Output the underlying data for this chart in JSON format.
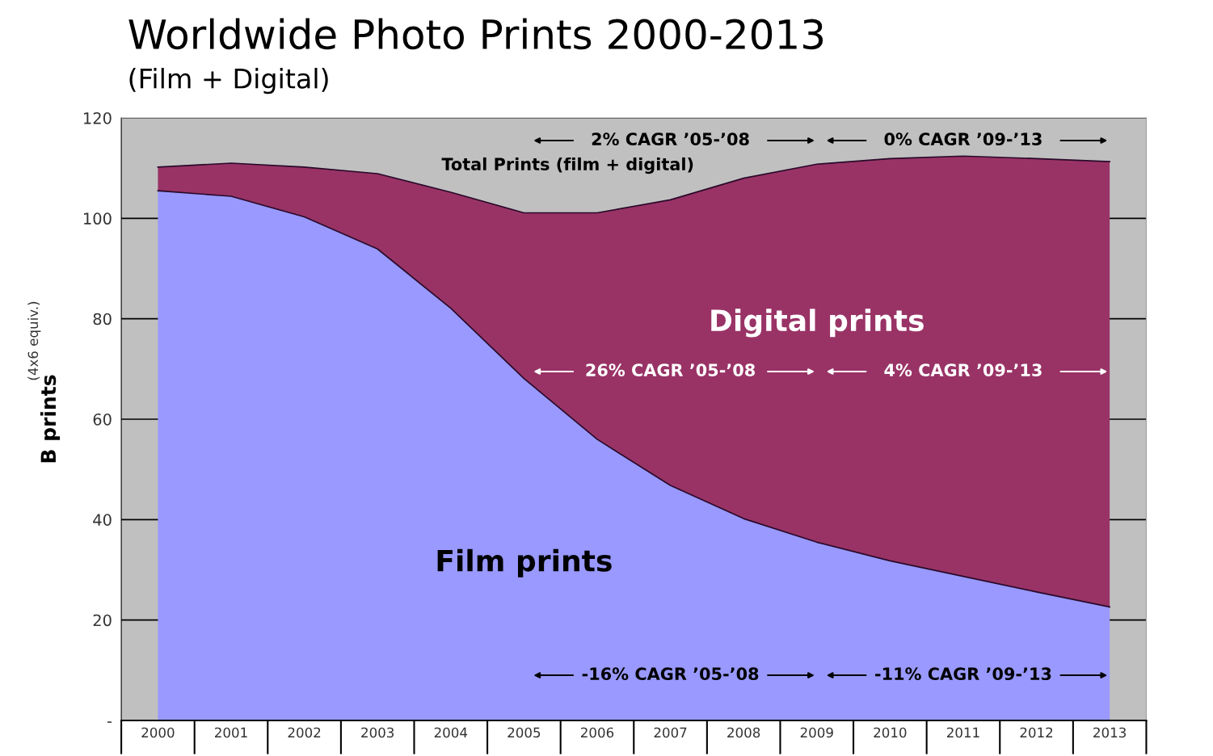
{
  "chart_data": {
    "type": "area",
    "stacked": true,
    "title": "Worldwide Photo Prints 2000-2013",
    "subtitle": "(Film + Digital)",
    "ylabel": "B prints",
    "categories": [
      "2000",
      "2001",
      "2002",
      "2003",
      "2004",
      "2005",
      "2006",
      "2007",
      "2008",
      "2009",
      "2010",
      "2011",
      "2012",
      "2013"
    ],
    "series": [
      {
        "name": "Film prints",
        "color": "#9999ff",
        "values": [
          105.5,
          104.4,
          100.3,
          93.9,
          82.1,
          68.1,
          56,
          46.8,
          40.2,
          35.5,
          31.8,
          28.7,
          25.6,
          22.6
        ]
      },
      {
        "name": "Digital prints",
        "color": "#993366",
        "values": [
          4.7,
          6.6,
          9.9,
          15,
          23.1,
          33,
          45.1,
          56.9,
          67.8,
          75.3,
          80.1,
          83.7,
          86.3,
          88.7
        ]
      }
    ],
    "ylim": [
      0,
      120
    ],
    "yticks": [
      {
        "value": 0,
        "label": "-"
      },
      20,
      40,
      60,
      80,
      100,
      120
    ],
    "grid": "y",
    "annotations": [
      "(4x6 equiv.)",
      "Total Prints (film + digital)",
      "2% CAGR ’05-’08",
      "0% CAGR ’09-’13",
      "26% CAGR ’05-’08",
      "4% CAGR ’09-’13",
      "-16% CAGR ’05-’08",
      "-11% CAGR ’09-’13"
    ]
  }
}
